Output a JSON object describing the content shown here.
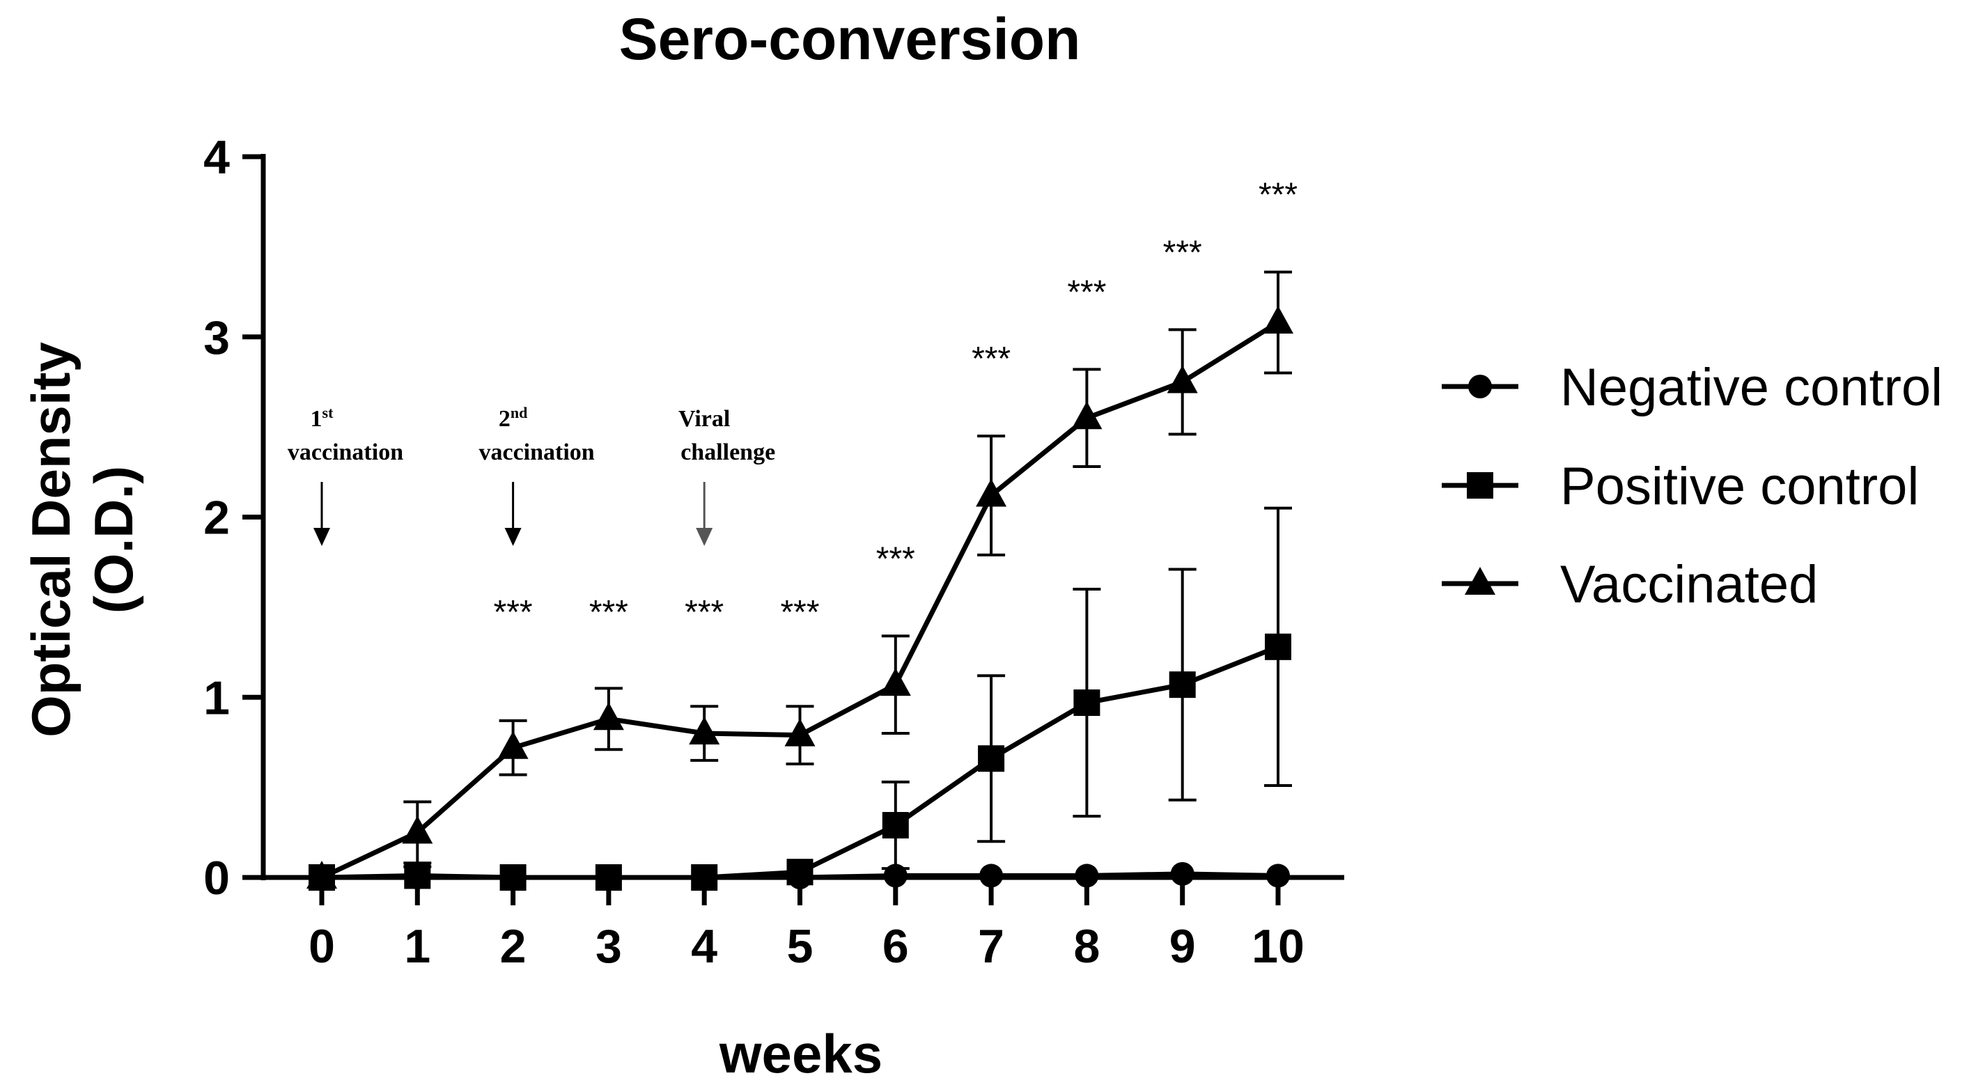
{
  "chart_data": {
    "type": "line",
    "title": "Sero-conversion",
    "xlabel": "weeks",
    "ylabel_line1": "Optical Density",
    "ylabel_line2": "(O.D.)",
    "x": [
      0,
      1,
      2,
      3,
      4,
      5,
      6,
      7,
      8,
      9,
      10
    ],
    "x_tick_labels": [
      "0",
      "1",
      "2",
      "3",
      "4",
      "5",
      "6",
      "7",
      "8",
      "9",
      "10"
    ],
    "ylim": [
      0,
      4
    ],
    "y_ticks": [
      0,
      1,
      2,
      3,
      4
    ],
    "y_tick_labels": [
      "0",
      "1",
      "2",
      "3",
      "4"
    ],
    "grid": false,
    "legend_position": "right",
    "series": [
      {
        "name": "Negative control",
        "marker": "circle",
        "values": [
          0.0,
          0.0,
          0.0,
          0.0,
          0.0,
          0.0,
          0.01,
          0.01,
          0.01,
          0.02,
          0.01
        ],
        "errors": [
          0.01,
          0.01,
          0.01,
          0.01,
          0.01,
          0.01,
          0.01,
          0.01,
          0.01,
          0.01,
          0.01
        ]
      },
      {
        "name": "Positive control",
        "marker": "square",
        "values": [
          0.0,
          0.01,
          0.0,
          0.0,
          0.0,
          0.03,
          0.29,
          0.66,
          0.97,
          1.07,
          1.28
        ],
        "errors": [
          0.0,
          0.05,
          0.0,
          0.0,
          0.0,
          0.02,
          0.24,
          0.46,
          0.63,
          0.64,
          0.77
        ]
      },
      {
        "name": "Vaccinated",
        "marker": "triangle",
        "values": [
          0.0,
          0.25,
          0.72,
          0.88,
          0.8,
          0.79,
          1.07,
          2.12,
          2.55,
          2.75,
          3.08
        ],
        "errors": [
          0.02,
          0.17,
          0.15,
          0.17,
          0.15,
          0.16,
          0.27,
          0.33,
          0.27,
          0.29,
          0.28
        ]
      }
    ],
    "significance": [
      {
        "x": 2,
        "label": "***"
      },
      {
        "x": 3,
        "label": "***"
      },
      {
        "x": 4,
        "label": "***"
      },
      {
        "x": 5,
        "label": "***"
      },
      {
        "x": 6,
        "label": "***"
      },
      {
        "x": 7,
        "label": "***"
      },
      {
        "x": 8,
        "label": "***"
      },
      {
        "x": 9,
        "label": "***"
      },
      {
        "x": 10,
        "label": "***"
      }
    ],
    "annotations": [
      {
        "x": 0,
        "line1_main": "1",
        "line1_sup": "st",
        "line2": "vaccination"
      },
      {
        "x": 2,
        "line1_main": "2",
        "line1_sup": "nd",
        "line2": "vaccination"
      },
      {
        "x": 4,
        "line1_main": "Viral",
        "line1_sup": "",
        "line2": "challenge"
      }
    ]
  },
  "colors": {
    "ink": "#000000",
    "background": "#ffffff",
    "annotation_arrow_light": "#555555"
  }
}
